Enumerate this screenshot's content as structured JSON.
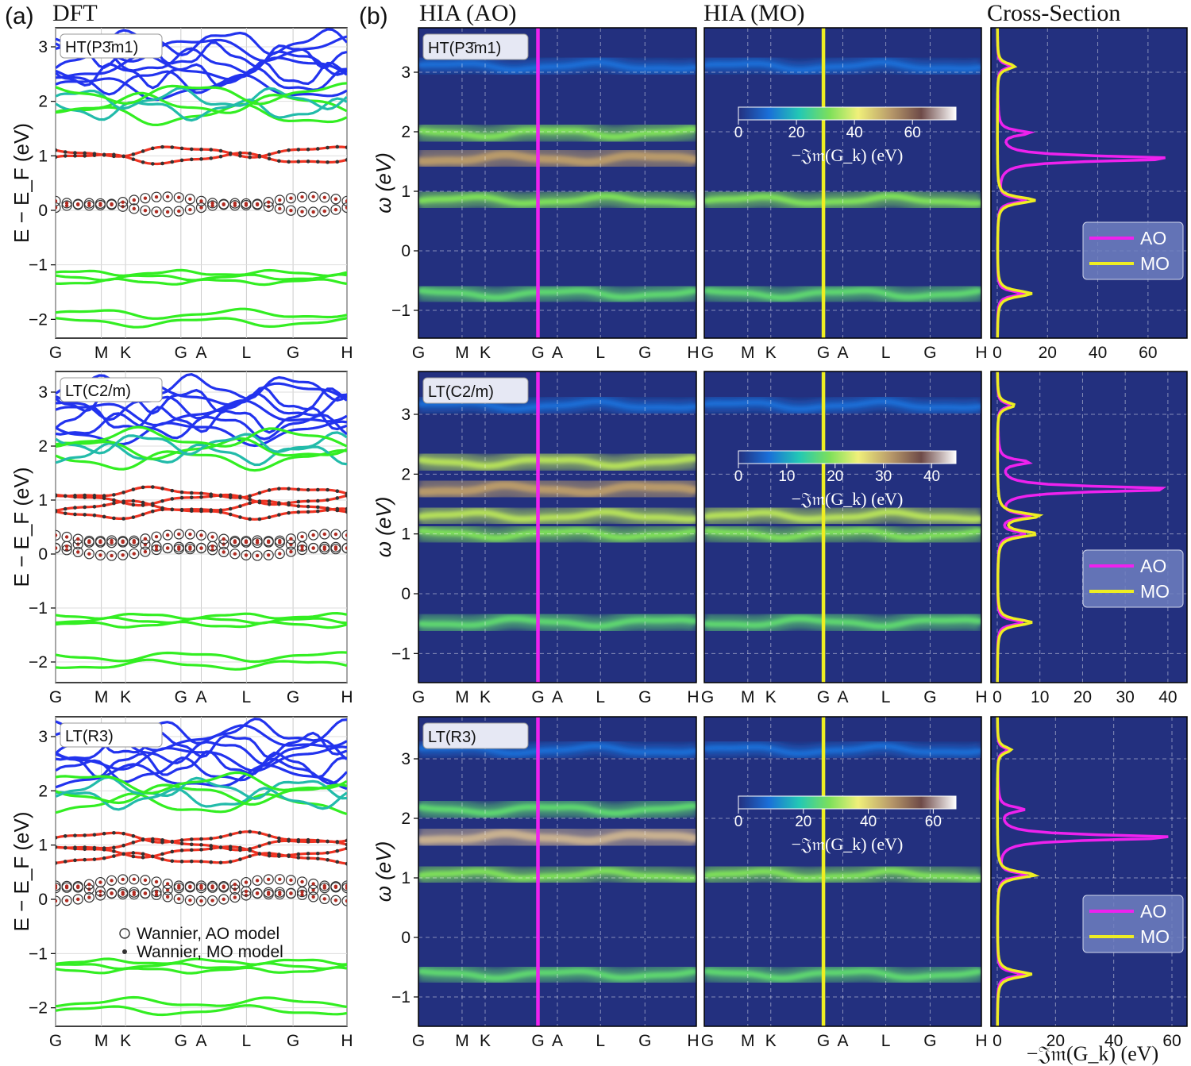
{
  "headers": {
    "a_label": "(a)",
    "a_title": "DFT",
    "b_label": "(b)",
    "hia_ao": "HIA (AO)",
    "hia_mo": "HIA (MO)",
    "cross": "Cross-Section"
  },
  "axis": {
    "dft_ylabel": "E − E_F (eV)",
    "omega_ylabel": "ω (eV)",
    "cross_xlabel": "−𝔍𝔪(G_k) (eV)",
    "colorbar_label": "−𝔍𝔪(G_k) (eV)",
    "kpath": [
      "G",
      "M",
      "K",
      "G",
      "A",
      "L",
      "G",
      "H"
    ]
  },
  "rows": [
    {
      "structure": "HT(P3̄m1)",
      "dft_yticks": [
        "3",
        "2",
        "1",
        "0",
        "−1",
        "−2"
      ],
      "hia_yticks": [
        "3",
        "2",
        "1",
        "0",
        "−1"
      ],
      "colorbar_ticks": [
        "0",
        "20",
        "40",
        "60"
      ],
      "colorbar_max": 75,
      "cross_xticks": [
        "0",
        "20",
        "40",
        "60"
      ],
      "cross_xmax": 73,
      "legend": [
        "AO",
        "MO"
      ]
    },
    {
      "structure": "LT(C2/m)",
      "dft_yticks": [
        "3",
        "2",
        "1",
        "0",
        "−1",
        "−2"
      ],
      "hia_yticks": [
        "3",
        "2",
        "1",
        "0",
        "−1"
      ],
      "colorbar_ticks": [
        "0",
        "10",
        "20",
        "30",
        "40"
      ],
      "colorbar_max": 45,
      "cross_xticks": [
        "0",
        "10",
        "20",
        "30",
        "40"
      ],
      "cross_xmax": 43,
      "legend": [
        "AO",
        "MO"
      ]
    },
    {
      "structure": "LT(R3)",
      "dft_yticks": [
        "3",
        "2",
        "1",
        "0",
        "−1",
        "−2"
      ],
      "hia_yticks": [
        "3",
        "2",
        "1",
        "0",
        "−1"
      ],
      "colorbar_ticks": [
        "0",
        "20",
        "40",
        "60"
      ],
      "colorbar_max": 67,
      "cross_xticks": [
        "0",
        "20",
        "40",
        "60"
      ],
      "cross_xmax": 63,
      "legend": [
        "AO",
        "MO"
      ],
      "wannier_legend": [
        "Wannier, AO model",
        "Wannier, MO model"
      ]
    }
  ],
  "colors": {
    "ao_line": "#ee22ee",
    "mo_line": "#eeee22",
    "dft_dband": "#ee3322",
    "dft_green": "#33ee22",
    "dft_blue": "#2233ee",
    "heat_bg": "#23307f"
  }
}
